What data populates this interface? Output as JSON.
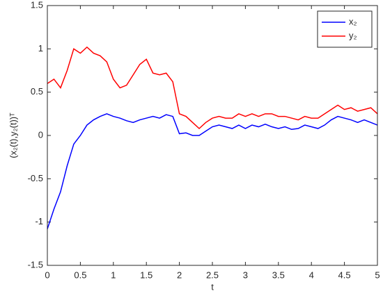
{
  "chart_data": {
    "type": "line",
    "xlabel": "t",
    "ylabel": "(x₂(t),y₂(t))ᵀ",
    "x": [
      0,
      0.1,
      0.2,
      0.3,
      0.4,
      0.5,
      0.6,
      0.7,
      0.8,
      0.9,
      1,
      1.1,
      1.2,
      1.3,
      1.4,
      1.5,
      1.6,
      1.7,
      1.8,
      1.9,
      2,
      2.1,
      2.2,
      2.3,
      2.4,
      2.5,
      2.6,
      2.7,
      2.8,
      2.9,
      3,
      3.1,
      3.2,
      3.3,
      3.4,
      3.5,
      3.6,
      3.7,
      3.8,
      3.9,
      4,
      4.1,
      4.2,
      4.3,
      4.4,
      4.5,
      4.6,
      4.7,
      4.8,
      4.9,
      5
    ],
    "series": [
      {
        "name": "x₂",
        "color": "#0000ff",
        "values": [
          -1.08,
          -0.85,
          -0.65,
          -0.35,
          -0.1,
          0.0,
          0.12,
          0.18,
          0.22,
          0.25,
          0.22,
          0.2,
          0.17,
          0.15,
          0.18,
          0.2,
          0.22,
          0.2,
          0.24,
          0.22,
          0.02,
          0.03,
          0.0,
          0.0,
          0.05,
          0.1,
          0.12,
          0.1,
          0.08,
          0.12,
          0.08,
          0.12,
          0.1,
          0.13,
          0.1,
          0.08,
          0.1,
          0.07,
          0.08,
          0.12,
          0.1,
          0.08,
          0.12,
          0.18,
          0.22,
          0.2,
          0.18,
          0.15,
          0.18,
          0.15,
          0.12
        ]
      },
      {
        "name": "y₂",
        "color": "#ff0000",
        "values": [
          0.6,
          0.65,
          0.55,
          0.75,
          1.0,
          0.95,
          1.02,
          0.95,
          0.92,
          0.85,
          0.65,
          0.55,
          0.58,
          0.7,
          0.82,
          0.88,
          0.72,
          0.7,
          0.72,
          0.62,
          0.25,
          0.22,
          0.15,
          0.08,
          0.15,
          0.2,
          0.22,
          0.2,
          0.2,
          0.25,
          0.22,
          0.25,
          0.22,
          0.25,
          0.25,
          0.22,
          0.22,
          0.2,
          0.18,
          0.22,
          0.2,
          0.2,
          0.25,
          0.3,
          0.35,
          0.3,
          0.32,
          0.28,
          0.3,
          0.32,
          0.25
        ]
      }
    ],
    "xlim": [
      0,
      5
    ],
    "xticks": [
      0,
      0.5,
      1,
      1.5,
      2,
      2.5,
      3,
      3.5,
      4,
      4.5,
      5
    ],
    "ylim": [
      -1.5,
      1.5
    ],
    "yticks": [
      -1.5,
      -1,
      -0.5,
      0,
      0.5,
      1,
      1.5
    ],
    "legend": "northeast"
  }
}
